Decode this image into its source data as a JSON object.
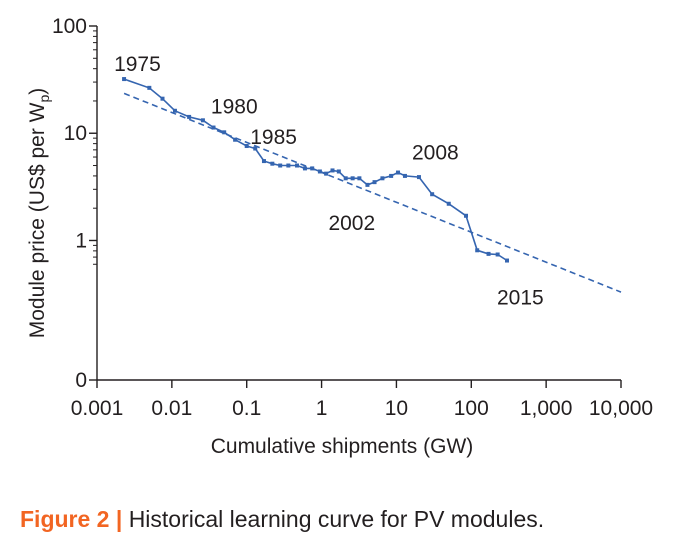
{
  "chart_data": {
    "type": "line",
    "x_scale": "log",
    "y_scale": "log",
    "xlabel": "Cumulative shipments (GW)",
    "ylabel_main": "Module price (US$ per W",
    "ylabel_sub": "p",
    "ylabel_close": ")",
    "x_ticks": [
      {
        "value": 0.001,
        "label": "0.001"
      },
      {
        "value": 0.01,
        "label": "0.01"
      },
      {
        "value": 0.1,
        "label": "0.1"
      },
      {
        "value": 1,
        "label": "1"
      },
      {
        "value": 10,
        "label": "10"
      },
      {
        "value": 100,
        "label": "100"
      },
      {
        "value": 1000,
        "label": "1,000"
      },
      {
        "value": 10000,
        "label": "10,000"
      }
    ],
    "y_ticks": [
      {
        "value": 100,
        "label": "100"
      },
      {
        "value": 10,
        "label": "10"
      },
      {
        "value": 1,
        "label": "1"
      },
      {
        "value": 0.05,
        "label": "0"
      }
    ],
    "xlim": [
      0.001,
      10000
    ],
    "ylim": [
      0.05,
      100
    ],
    "series": [
      {
        "color": "#3565b0",
        "style": "solid-with-markers",
        "points": [
          [
            0.0023,
            32
          ],
          [
            0.005,
            26.5
          ],
          [
            0.0075,
            21
          ],
          [
            0.011,
            16.2
          ],
          [
            0.017,
            14.2
          ],
          [
            0.026,
            13.2
          ],
          [
            0.036,
            11.3
          ],
          [
            0.05,
            10.2
          ],
          [
            0.07,
            8.7
          ],
          [
            0.1,
            7.6
          ],
          [
            0.13,
            7.2
          ],
          [
            0.17,
            5.5
          ],
          [
            0.22,
            5.2
          ],
          [
            0.28,
            5.0
          ],
          [
            0.36,
            5.0
          ],
          [
            0.47,
            5.0
          ],
          [
            0.6,
            4.7
          ],
          [
            0.75,
            4.7
          ],
          [
            0.95,
            4.4
          ],
          [
            1.15,
            4.2
          ],
          [
            1.4,
            4.5
          ],
          [
            1.7,
            4.4
          ],
          [
            2.1,
            3.8
          ],
          [
            2.6,
            3.8
          ],
          [
            3.2,
            3.8
          ],
          [
            4.1,
            3.3
          ],
          [
            5.1,
            3.5
          ],
          [
            6.5,
            3.8
          ],
          [
            8.5,
            4.0
          ],
          [
            10.5,
            4.3
          ],
          [
            13,
            4.0
          ],
          [
            20,
            3.9
          ],
          [
            30,
            2.7
          ],
          [
            50,
            2.2
          ],
          [
            85,
            1.7
          ],
          [
            120,
            0.81
          ],
          [
            170,
            0.75
          ],
          [
            225,
            0.74
          ],
          [
            300,
            0.65
          ]
        ]
      },
      {
        "color": "#3565b0",
        "style": "dashed",
        "points": [
          [
            0.0023,
            23.5
          ],
          [
            10000,
            0.33
          ]
        ]
      }
    ],
    "annotations": [
      {
        "text": "1975",
        "x": 0.0023,
        "y": 32
      },
      {
        "text": "1980",
        "x": 0.04,
        "y": 11.3
      },
      {
        "text": "1985",
        "x": 0.2,
        "y": 5.5
      },
      {
        "text": "2002",
        "x": 4.1,
        "y": 3.3
      },
      {
        "text": "2008",
        "x": 10.5,
        "y": 4.3
      },
      {
        "text": "2015",
        "x": 300,
        "y": 0.65
      }
    ]
  },
  "caption": {
    "figure_label": "Figure 2 |",
    "text": "Historical learning curve for PV modules."
  }
}
